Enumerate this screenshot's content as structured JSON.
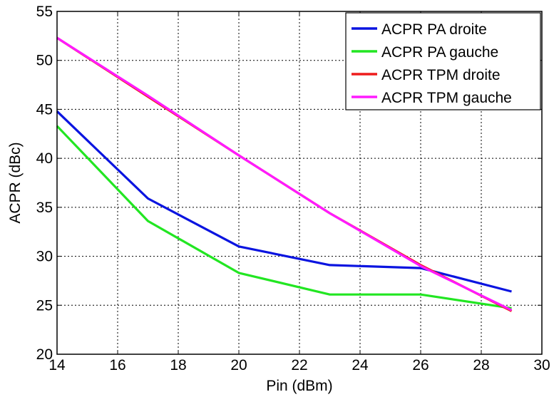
{
  "chart_data": {
    "type": "line",
    "title": "",
    "xlabel": "Pin (dBm)",
    "ylabel": "ACPR  (dBc)",
    "xlim": [
      14,
      30
    ],
    "ylim": [
      20,
      55
    ],
    "xticks": [
      14,
      16,
      18,
      20,
      22,
      24,
      26,
      28,
      30
    ],
    "yticks": [
      20,
      25,
      30,
      35,
      40,
      45,
      50,
      55
    ],
    "grid": true,
    "legend_position": "top-right",
    "series": [
      {
        "name": "ACPR PA droite",
        "color": "#0a14e0",
        "x": [
          14,
          17,
          20,
          23,
          26,
          29
        ],
        "y": [
          44.8,
          35.9,
          31.0,
          29.1,
          28.8,
          26.4
        ]
      },
      {
        "name": "ACPR PA gauche",
        "color": "#22e622",
        "x": [
          14,
          17,
          20,
          23,
          26,
          29
        ],
        "y": [
          43.3,
          33.6,
          28.3,
          26.1,
          26.1,
          24.7
        ]
      },
      {
        "name": "ACPR TPM droite",
        "color": "#ee1c1c",
        "x": [
          14,
          17,
          20,
          23,
          26,
          29
        ],
        "y": [
          52.3,
          46.3,
          40.3,
          34.4,
          29.1,
          24.4
        ]
      },
      {
        "name": "ACPR TPM gauche",
        "color": "#ff1aff",
        "x": [
          14,
          17,
          20,
          23,
          26,
          29
        ],
        "y": [
          52.3,
          46.4,
          40.3,
          34.4,
          29.0,
          24.5
        ]
      }
    ]
  }
}
